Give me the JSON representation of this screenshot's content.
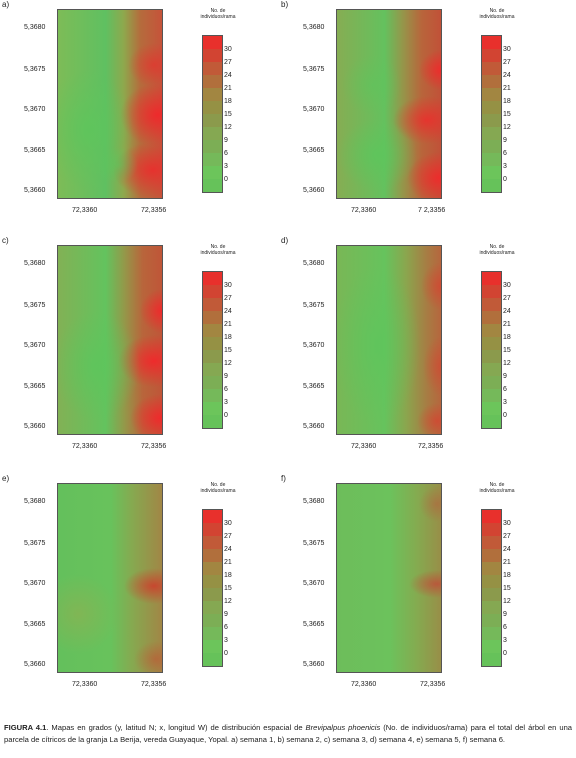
{
  "figure": {
    "caption_label": "FIGURA 4.1",
    "caption_text_1": ". Mapas en grados  (y, latitud N; x, longitud W) de distribución espacial de ",
    "caption_species": "Brevipalpus phoenicis",
    "caption_text_2": " (No. de individuos/rama) para el total del árbol en una parcela de cítricos de la granja La Berija, vereda Guayaque, Yopal.  a) semana 1, b) semana 2, c) semana 3, d) semana 4, e) semana 5, f) semana 6."
  },
  "colors": {
    "scale": [
      "#66c25a",
      "#6cc55b",
      "#75b95a",
      "#7cae55",
      "#85a852",
      "#8b9a4c",
      "#959144",
      "#a28641",
      "#b16f3c",
      "#c15a38",
      "#d24432",
      "#e8302c"
    ]
  },
  "panels": [
    {
      "label": "a)",
      "yticks": [
        "5,3680",
        "5,3675",
        "5,3670",
        "5,3665",
        "5,3660"
      ],
      "xticks": [
        "72,3360",
        "72,3356"
      ],
      "legend_title": "No. de individuos/rama",
      "legend_values": [
        "30",
        "27",
        "24",
        "21",
        "18",
        "15",
        "12",
        "9",
        "6",
        "3",
        "0"
      ]
    },
    {
      "label": "b)",
      "yticks": [
        "5,3680",
        "5,3675",
        "5,3670",
        "5,3665",
        "5,3660"
      ],
      "xticks": [
        "72,3360",
        "7 2,3356"
      ],
      "legend_title": "No. de individuos/rama",
      "legend_values": [
        "30",
        "27",
        "24",
        "21",
        "18",
        "15",
        "12",
        "9",
        "6",
        "3",
        "0"
      ]
    },
    {
      "label": "c)",
      "yticks": [
        "5,3680",
        "5,3675",
        "5,3670",
        "5,3665",
        "5,3660"
      ],
      "xticks": [
        "72,3360",
        "72,3356"
      ],
      "legend_title": "No. de individuos/rama",
      "legend_values": [
        "30",
        "27",
        "24",
        "21",
        "18",
        "15",
        "12",
        "9",
        "6",
        "3",
        "0"
      ]
    },
    {
      "label": "d)",
      "yticks": [
        "5,3680",
        "5,3675",
        "5,3670",
        "5,3665",
        "5,3660"
      ],
      "xticks": [
        "72,3360",
        "72,3356"
      ],
      "legend_title": "No. de individuos/rama",
      "legend_values": [
        "30",
        "27",
        "24",
        "21",
        "18",
        "15",
        "12",
        "9",
        "6",
        "3",
        "0"
      ]
    },
    {
      "label": "e)",
      "yticks": [
        "5,3680",
        "5,3675",
        "5,3670",
        "5,3665",
        "5,3660"
      ],
      "xticks": [
        "72,3360",
        "72,3356"
      ],
      "legend_title": "No. de individuos/rama",
      "legend_values": [
        "30",
        "27",
        "24",
        "21",
        "18",
        "15",
        "12",
        "9",
        "6",
        "3",
        "0"
      ]
    },
    {
      "label": "f)",
      "yticks": [
        "5,3680",
        "5,3675",
        "5,3670",
        "5,3665",
        "5,3660"
      ],
      "xticks": [
        "72,3360",
        "72,3356"
      ],
      "legend_title": "No. de individuos/rama",
      "legend_values": [
        "30",
        "27",
        "24",
        "21",
        "18",
        "15",
        "12",
        "9",
        "6",
        "3",
        "0"
      ]
    }
  ]
}
